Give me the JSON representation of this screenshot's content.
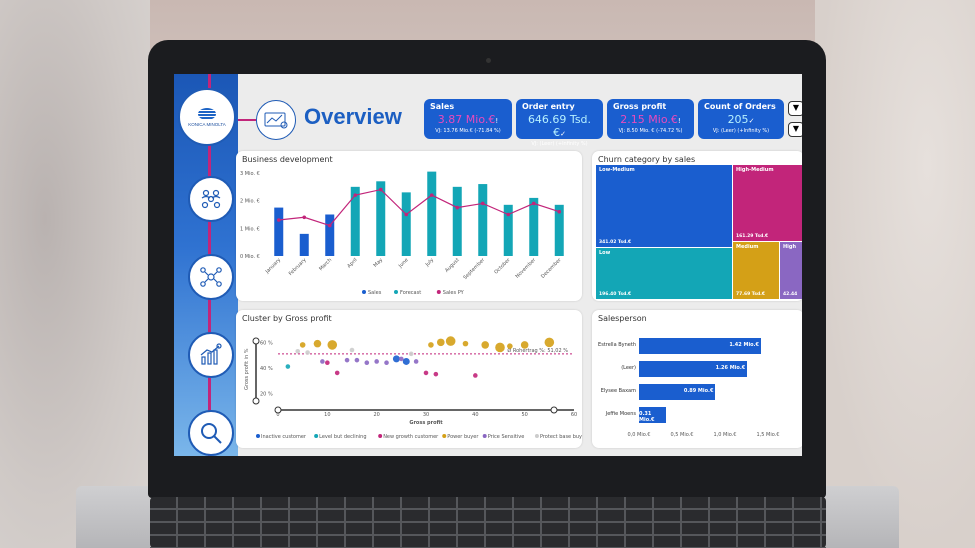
{
  "page": {
    "title": "Overview",
    "logo_text": "KONICA MINOLTA"
  },
  "colors": {
    "primary": "#1a5ecf",
    "teal": "#13a6b6",
    "magenta": "#c2257a",
    "gold": "#d4a017",
    "purple": "#8a67c2"
  },
  "kpis": [
    {
      "title": "Sales",
      "value": "3.87 Mio.€",
      "value_color": "#e84bbd",
      "indicator": "!",
      "sub": "VJ: 13.76 Mio.€ (-71.84 %)"
    },
    {
      "title": "Order entry",
      "value": "646.69 Tsd.€",
      "value_color": "#b6f0ff",
      "indicator": "✓",
      "sub": "VJ: (Leer) (+Infinity %)"
    },
    {
      "title": "Gross profit",
      "value": "2.15 Mio.€",
      "value_color": "#e84bbd",
      "indicator": "!",
      "sub": "VJ: 8.50 Mio. € (-74.72 %)"
    },
    {
      "title": "Count of Orders",
      "value": "205",
      "value_color": "#b6f0ff",
      "indicator": "✓",
      "sub": "VJ: (Leer) (+Infinity %)"
    }
  ],
  "business": {
    "title": "Business development",
    "legend": [
      "Sales",
      "Forecast",
      "Sales PY"
    ]
  },
  "chart_data": [
    {
      "type": "bar",
      "title": "Business development",
      "categories": [
        "January",
        "February",
        "March",
        "April",
        "May",
        "June",
        "July",
        "August",
        "September",
        "October",
        "November",
        "December"
      ],
      "yticks": [
        "0 Mio. €",
        "1 Mio. €",
        "2 Mio. €",
        "3 Mio. €"
      ],
      "ylim": [
        0,
        3
      ],
      "series": [
        {
          "name": "Sales",
          "values": [
            1.75,
            0.8,
            1.5,
            null,
            null,
            null,
            null,
            null,
            null,
            null,
            null,
            null
          ]
        },
        {
          "name": "Forecast",
          "values": [
            null,
            null,
            null,
            2.5,
            2.7,
            2.3,
            3.05,
            2.5,
            2.6,
            1.85,
            2.1,
            1.85
          ]
        },
        {
          "name": "Sales PY",
          "values": [
            1.3,
            1.4,
            1.1,
            2.2,
            2.4,
            1.5,
            2.2,
            1.75,
            1.9,
            1.5,
            1.9,
            1.6
          ]
        }
      ]
    },
    {
      "type": "scatter",
      "title": "Cluster by Gross profit",
      "xlabel": "Gross profit",
      "ylabel": "Gross profit in %",
      "xticks": [
        "0",
        "10",
        "20",
        "30",
        "40",
        "50",
        "60"
      ],
      "yticks": [
        "20 %",
        "40 %",
        "60 %"
      ],
      "reference_line": "Ø Rohertrag %: 51,02 %",
      "series": [
        {
          "name": "Inactive customer",
          "points": [
            [
              26,
              45
            ],
            [
              24,
              47
            ]
          ]
        },
        {
          "name": "Level but declining",
          "points": [
            [
              2,
              41
            ]
          ]
        },
        {
          "name": "New growth customer",
          "points": [
            [
              10,
              44
            ],
            [
              12,
              36
            ],
            [
              30,
              36
            ],
            [
              32,
              35
            ],
            [
              40,
              34
            ]
          ]
        },
        {
          "name": "Power buyer",
          "points": [
            [
              5,
              58
            ],
            [
              8,
              59
            ],
            [
              11,
              58
            ],
            [
              31,
              58
            ],
            [
              33,
              60
            ],
            [
              35,
              61
            ],
            [
              38,
              59
            ],
            [
              42,
              58
            ],
            [
              45,
              56
            ],
            [
              47,
              57
            ],
            [
              50,
              58
            ],
            [
              55,
              60
            ]
          ]
        },
        {
          "name": "Price Sensitive",
          "points": [
            [
              9,
              45
            ],
            [
              14,
              46
            ],
            [
              16,
              46
            ],
            [
              18,
              44
            ],
            [
              20,
              45
            ],
            [
              22,
              44
            ],
            [
              25,
              47
            ],
            [
              28,
              45
            ]
          ]
        },
        {
          "name": "Protect base buyer",
          "points": [
            [
              4,
              53
            ],
            [
              6,
              52
            ],
            [
              15,
              54
            ],
            [
              27,
              51
            ]
          ]
        }
      ]
    },
    {
      "type": "heatmap",
      "title": "Churn category by sales",
      "cells": [
        {
          "label": "Low-Medium",
          "value": "341.02 Tsd.€"
        },
        {
          "label": "High-Medium",
          "value": "161.29 Tsd.€"
        },
        {
          "label": "Low",
          "value": "196.40 Tsd.€"
        },
        {
          "label": "Medium",
          "value": "77.69 Tsd.€"
        },
        {
          "label": "High",
          "value": "42.44"
        }
      ]
    },
    {
      "type": "bar",
      "title": "Salesperson",
      "categories": [
        "Estrella Byneth",
        "(Leer)",
        "Elysee Baxam",
        "Jeffie Moens"
      ],
      "values": [
        1.42,
        1.26,
        0.89,
        0.31
      ],
      "labels": [
        "1.42 Mio.€",
        "1.26 Mio.€",
        "0.89 Mio.€",
        "0.31 Mio.€"
      ],
      "xticks": [
        "0,0 Mio.€",
        "0,5 Mio.€",
        "1,0 Mio.€",
        "1,5 Mio.€"
      ]
    }
  ],
  "cluster": {
    "title": "Cluster by Gross profit",
    "legend": [
      "Inactive customer",
      "Level but declining",
      "New growth customer",
      "Power buyer",
      "Price Sensitive",
      "Protect base buyer"
    ],
    "slider_min": "0",
    "slider_max": "30"
  },
  "treemap": {
    "title": "Churn category by sales"
  },
  "salesperson": {
    "title": "Salesperson"
  },
  "filter_icons": [
    "filter-icon",
    "filter-icon"
  ]
}
